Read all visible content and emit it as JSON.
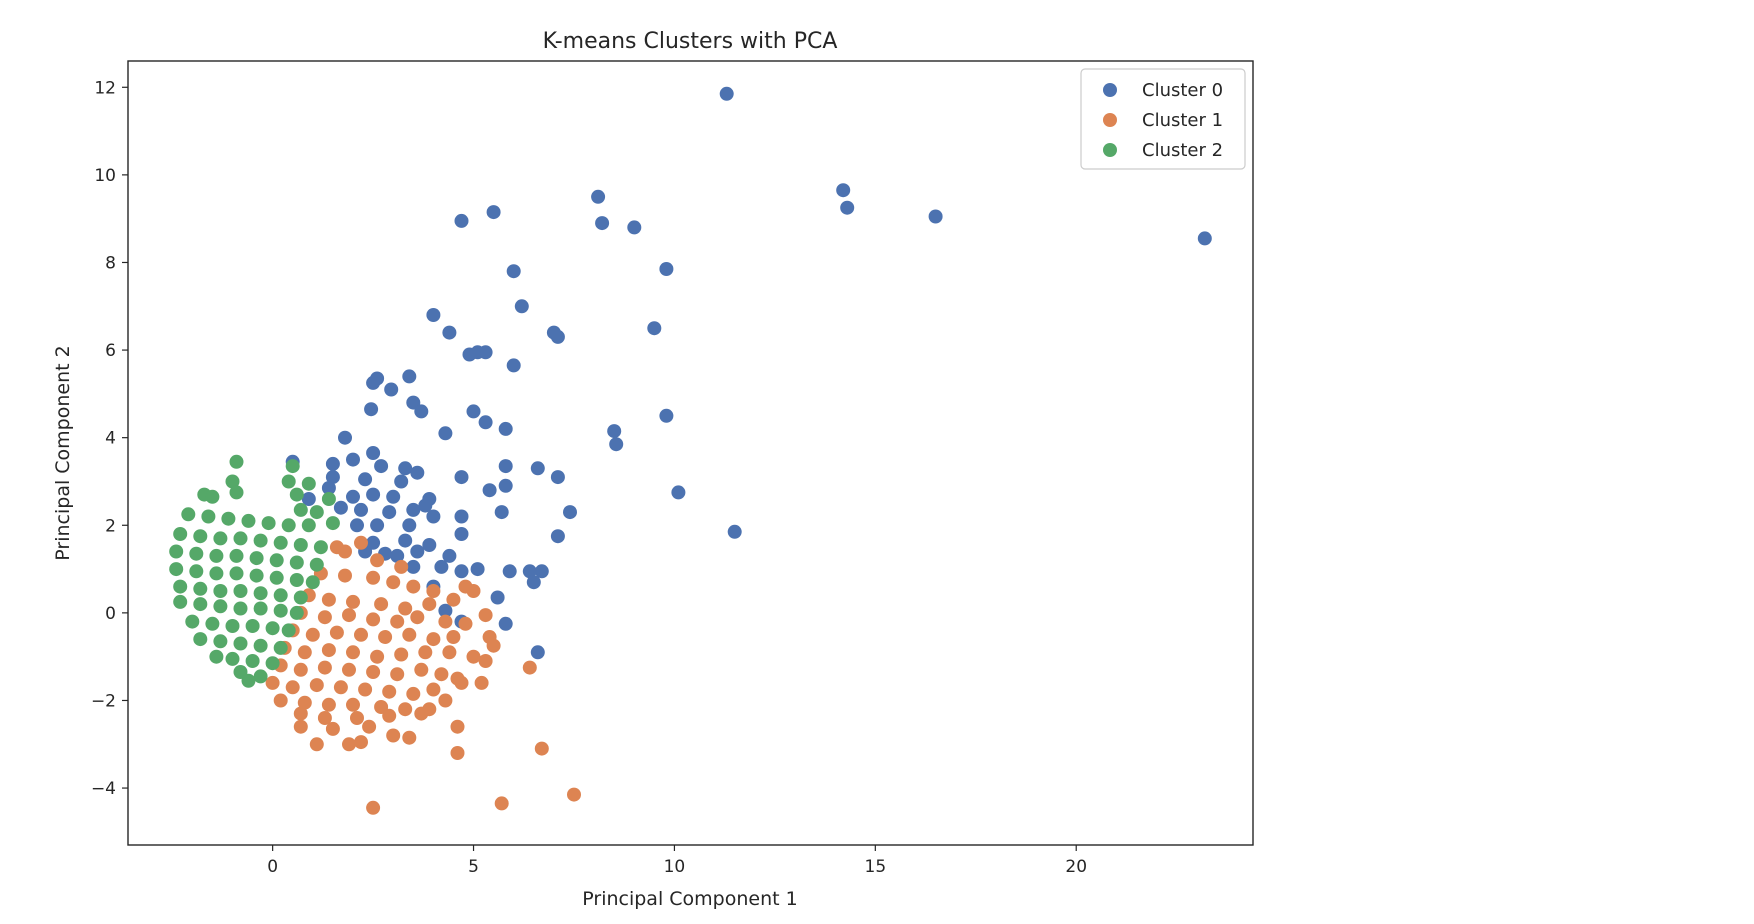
{
  "chart_data": {
    "type": "scatter",
    "title": "K-means Clusters with PCA",
    "xlabel": "Principal Component 1",
    "ylabel": "Principal Component 2",
    "xlim": [
      -3.6,
      24.4
    ],
    "ylim": [
      -5.3,
      12.6
    ],
    "xticks": [
      0,
      5,
      10,
      15,
      20
    ],
    "yticks": [
      -4,
      -2,
      0,
      2,
      4,
      6,
      8,
      10,
      12
    ],
    "grid": false,
    "legend_position": "top-right",
    "series": [
      {
        "name": "Cluster 0",
        "color": "#4c72b0",
        "points": [
          [
            11.3,
            11.85
          ],
          [
            14.2,
            9.65
          ],
          [
            14.3,
            9.25
          ],
          [
            16.5,
            9.05
          ],
          [
            23.2,
            8.55
          ],
          [
            8.1,
            9.5
          ],
          [
            8.2,
            8.9
          ],
          [
            9.0,
            8.8
          ],
          [
            5.5,
            9.15
          ],
          [
            4.7,
            8.95
          ],
          [
            6.0,
            7.8
          ],
          [
            9.8,
            7.85
          ],
          [
            6.2,
            7.0
          ],
          [
            4.0,
            6.8
          ],
          [
            4.4,
            6.4
          ],
          [
            7.0,
            6.4
          ],
          [
            7.1,
            6.3
          ],
          [
            9.5,
            6.5
          ],
          [
            4.9,
            5.9
          ],
          [
            5.1,
            5.95
          ],
          [
            5.3,
            5.95
          ],
          [
            6.0,
            5.65
          ],
          [
            2.5,
            5.25
          ],
          [
            2.6,
            5.35
          ],
          [
            2.95,
            5.1
          ],
          [
            3.4,
            5.4
          ],
          [
            3.5,
            4.8
          ],
          [
            3.7,
            4.6
          ],
          [
            2.45,
            4.65
          ],
          [
            5.0,
            4.6
          ],
          [
            5.3,
            4.35
          ],
          [
            9.8,
            4.5
          ],
          [
            4.3,
            4.1
          ],
          [
            5.8,
            4.2
          ],
          [
            8.5,
            4.15
          ],
          [
            8.55,
            3.85
          ],
          [
            1.8,
            4.0
          ],
          [
            2.5,
            3.65
          ],
          [
            0.5,
            3.45
          ],
          [
            1.5,
            3.4
          ],
          [
            2.0,
            3.5
          ],
          [
            2.7,
            3.35
          ],
          [
            3.3,
            3.3
          ],
          [
            3.6,
            3.2
          ],
          [
            5.8,
            3.35
          ],
          [
            6.6,
            3.3
          ],
          [
            1.5,
            3.1
          ],
          [
            2.3,
            3.05
          ],
          [
            3.2,
            3.0
          ],
          [
            4.7,
            3.1
          ],
          [
            7.1,
            3.1
          ],
          [
            1.4,
            2.85
          ],
          [
            5.4,
            2.8
          ],
          [
            5.8,
            2.9
          ],
          [
            10.1,
            2.75
          ],
          [
            0.9,
            2.6
          ],
          [
            2.0,
            2.65
          ],
          [
            2.5,
            2.7
          ],
          [
            3.0,
            2.65
          ],
          [
            3.9,
            2.6
          ],
          [
            1.7,
            2.4
          ],
          [
            2.2,
            2.35
          ],
          [
            2.9,
            2.3
          ],
          [
            3.5,
            2.35
          ],
          [
            3.8,
            2.45
          ],
          [
            4.0,
            2.2
          ],
          [
            4.7,
            2.2
          ],
          [
            5.7,
            2.3
          ],
          [
            7.4,
            2.3
          ],
          [
            2.1,
            2.0
          ],
          [
            2.6,
            2.0
          ],
          [
            3.4,
            2.0
          ],
          [
            4.7,
            1.8
          ],
          [
            7.1,
            1.75
          ],
          [
            11.5,
            1.85
          ],
          [
            2.5,
            1.6
          ],
          [
            3.3,
            1.65
          ],
          [
            3.9,
            1.55
          ],
          [
            2.3,
            1.4
          ],
          [
            2.8,
            1.35
          ],
          [
            3.1,
            1.3
          ],
          [
            3.6,
            1.4
          ],
          [
            4.4,
            1.3
          ],
          [
            3.5,
            1.05
          ],
          [
            4.2,
            1.05
          ],
          [
            4.7,
            0.95
          ],
          [
            5.1,
            1.0
          ],
          [
            5.9,
            0.95
          ],
          [
            6.4,
            0.95
          ],
          [
            6.7,
            0.95
          ],
          [
            4.0,
            0.6
          ],
          [
            6.5,
            0.7
          ],
          [
            5.6,
            0.35
          ],
          [
            4.3,
            0.05
          ],
          [
            5.8,
            -0.25
          ],
          [
            4.7,
            -0.2
          ],
          [
            6.6,
            -0.9
          ]
        ]
      },
      {
        "name": "Cluster 1",
        "color": "#dd8452",
        "points": [
          [
            1.6,
            1.5
          ],
          [
            1.8,
            1.4
          ],
          [
            2.2,
            1.6
          ],
          [
            2.6,
            1.2
          ],
          [
            3.2,
            1.05
          ],
          [
            1.2,
            0.9
          ],
          [
            1.8,
            0.85
          ],
          [
            2.5,
            0.8
          ],
          [
            3.0,
            0.7
          ],
          [
            3.5,
            0.6
          ],
          [
            4.0,
            0.5
          ],
          [
            4.8,
            0.6
          ],
          [
            5.0,
            0.5
          ],
          [
            0.9,
            0.4
          ],
          [
            1.4,
            0.3
          ],
          [
            2.0,
            0.25
          ],
          [
            2.7,
            0.2
          ],
          [
            3.3,
            0.1
          ],
          [
            3.9,
            0.2
          ],
          [
            4.5,
            0.3
          ],
          [
            0.7,
            0.0
          ],
          [
            1.3,
            -0.1
          ],
          [
            1.9,
            -0.05
          ],
          [
            2.5,
            -0.15
          ],
          [
            3.1,
            -0.2
          ],
          [
            3.6,
            -0.1
          ],
          [
            4.3,
            -0.2
          ],
          [
            4.8,
            -0.25
          ],
          [
            5.3,
            -0.05
          ],
          [
            0.5,
            -0.4
          ],
          [
            1.0,
            -0.5
          ],
          [
            1.6,
            -0.45
          ],
          [
            2.2,
            -0.5
          ],
          [
            2.8,
            -0.55
          ],
          [
            3.4,
            -0.5
          ],
          [
            4.0,
            -0.6
          ],
          [
            4.5,
            -0.55
          ],
          [
            5.4,
            -0.55
          ],
          [
            0.3,
            -0.8
          ],
          [
            0.8,
            -0.9
          ],
          [
            1.4,
            -0.85
          ],
          [
            2.0,
            -0.9
          ],
          [
            2.6,
            -1.0
          ],
          [
            3.2,
            -0.95
          ],
          [
            3.8,
            -0.9
          ],
          [
            4.4,
            -0.9
          ],
          [
            5.0,
            -1.0
          ],
          [
            5.5,
            -0.75
          ],
          [
            0.2,
            -1.2
          ],
          [
            0.7,
            -1.3
          ],
          [
            1.3,
            -1.25
          ],
          [
            1.9,
            -1.3
          ],
          [
            2.5,
            -1.35
          ],
          [
            3.1,
            -1.4
          ],
          [
            3.7,
            -1.3
          ],
          [
            4.2,
            -1.4
          ],
          [
            4.6,
            -1.5
          ],
          [
            5.3,
            -1.1
          ],
          [
            6.4,
            -1.25
          ],
          [
            0.0,
            -1.6
          ],
          [
            0.5,
            -1.7
          ],
          [
            1.1,
            -1.65
          ],
          [
            1.7,
            -1.7
          ],
          [
            2.3,
            -1.75
          ],
          [
            2.9,
            -1.8
          ],
          [
            3.5,
            -1.85
          ],
          [
            4.0,
            -1.75
          ],
          [
            4.7,
            -1.6
          ],
          [
            5.2,
            -1.6
          ],
          [
            0.2,
            -2.0
          ],
          [
            0.8,
            -2.05
          ],
          [
            1.4,
            -2.1
          ],
          [
            2.0,
            -2.1
          ],
          [
            2.7,
            -2.15
          ],
          [
            3.3,
            -2.2
          ],
          [
            3.9,
            -2.2
          ],
          [
            4.3,
            -2.0
          ],
          [
            0.7,
            -2.3
          ],
          [
            1.3,
            -2.4
          ],
          [
            2.1,
            -2.4
          ],
          [
            2.9,
            -2.35
          ],
          [
            3.7,
            -2.3
          ],
          [
            0.7,
            -2.6
          ],
          [
            1.5,
            -2.65
          ],
          [
            2.4,
            -2.6
          ],
          [
            3.0,
            -2.8
          ],
          [
            3.4,
            -2.85
          ],
          [
            4.6,
            -2.6
          ],
          [
            1.1,
            -3.0
          ],
          [
            1.9,
            -3.0
          ],
          [
            2.2,
            -2.95
          ],
          [
            6.7,
            -3.1
          ],
          [
            4.6,
            -3.2
          ],
          [
            2.5,
            -4.45
          ],
          [
            5.7,
            -4.35
          ],
          [
            7.5,
            -4.15
          ]
        ]
      },
      {
        "name": "Cluster 2",
        "color": "#55a868",
        "points": [
          [
            -0.9,
            3.45
          ],
          [
            -1.0,
            3.0
          ],
          [
            -0.9,
            2.75
          ],
          [
            -1.7,
            2.7
          ],
          [
            -1.5,
            2.65
          ],
          [
            0.4,
            3.0
          ],
          [
            0.5,
            3.35
          ],
          [
            0.9,
            2.95
          ],
          [
            0.6,
            2.7
          ],
          [
            1.4,
            2.6
          ],
          [
            0.7,
            2.35
          ],
          [
            1.1,
            2.3
          ],
          [
            -2.1,
            2.25
          ],
          [
            -1.6,
            2.2
          ],
          [
            -1.1,
            2.15
          ],
          [
            -0.6,
            2.1
          ],
          [
            -0.1,
            2.05
          ],
          [
            0.4,
            2.0
          ],
          [
            0.9,
            2.0
          ],
          [
            1.5,
            2.05
          ],
          [
            -2.3,
            1.8
          ],
          [
            -1.8,
            1.75
          ],
          [
            -1.3,
            1.7
          ],
          [
            -0.8,
            1.7
          ],
          [
            -0.3,
            1.65
          ],
          [
            0.2,
            1.6
          ],
          [
            0.7,
            1.55
          ],
          [
            1.2,
            1.5
          ],
          [
            -2.4,
            1.4
          ],
          [
            -1.9,
            1.35
          ],
          [
            -1.4,
            1.3
          ],
          [
            -0.9,
            1.3
          ],
          [
            -0.4,
            1.25
          ],
          [
            0.1,
            1.2
          ],
          [
            0.6,
            1.15
          ],
          [
            1.1,
            1.1
          ],
          [
            -2.4,
            1.0
          ],
          [
            -1.9,
            0.95
          ],
          [
            -1.4,
            0.9
          ],
          [
            -0.9,
            0.9
          ],
          [
            -0.4,
            0.85
          ],
          [
            0.1,
            0.8
          ],
          [
            0.6,
            0.75
          ],
          [
            1.0,
            0.7
          ],
          [
            -2.3,
            0.6
          ],
          [
            -1.8,
            0.55
          ],
          [
            -1.3,
            0.5
          ],
          [
            -0.8,
            0.5
          ],
          [
            -0.3,
            0.45
          ],
          [
            0.2,
            0.4
          ],
          [
            0.7,
            0.35
          ],
          [
            -2.3,
            0.25
          ],
          [
            -1.8,
            0.2
          ],
          [
            -1.3,
            0.15
          ],
          [
            -0.8,
            0.1
          ],
          [
            -0.3,
            0.1
          ],
          [
            0.2,
            0.05
          ],
          [
            0.6,
            0.0
          ],
          [
            -2.0,
            -0.2
          ],
          [
            -1.5,
            -0.25
          ],
          [
            -1.0,
            -0.3
          ],
          [
            -0.5,
            -0.3
          ],
          [
            0.0,
            -0.35
          ],
          [
            0.4,
            -0.4
          ],
          [
            -1.8,
            -0.6
          ],
          [
            -1.3,
            -0.65
          ],
          [
            -0.8,
            -0.7
          ],
          [
            -0.3,
            -0.75
          ],
          [
            0.2,
            -0.8
          ],
          [
            -1.4,
            -1.0
          ],
          [
            -1.0,
            -1.05
          ],
          [
            -0.5,
            -1.1
          ],
          [
            0.0,
            -1.15
          ],
          [
            -0.8,
            -1.35
          ],
          [
            -0.3,
            -1.45
          ],
          [
            -0.6,
            -1.55
          ]
        ]
      }
    ]
  }
}
